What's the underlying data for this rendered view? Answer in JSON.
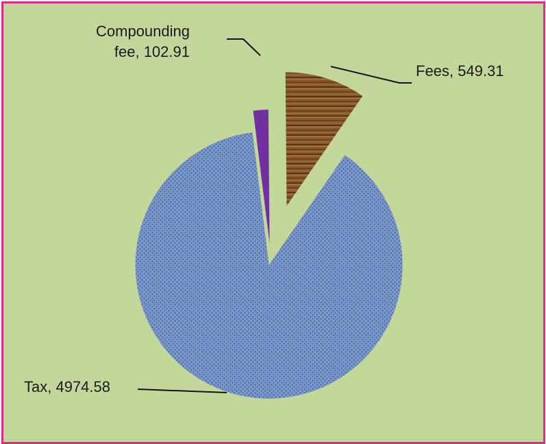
{
  "chart_data": {
    "type": "pie",
    "exploded": true,
    "slices": [
      {
        "category": "Compounding fee",
        "value": 102.91,
        "label_lines": [
          "Compounding",
          "fee, 102.91"
        ],
        "color": "#7030a0",
        "fill": "purple"
      },
      {
        "category": "Fees",
        "value": 549.31,
        "label_lines": [
          "Fees, 549.31"
        ],
        "color": "#8b5a2b",
        "fill": "wood-texture"
      },
      {
        "category": "Tax",
        "value": 4974.58,
        "label_lines": [
          "Tax, 4974.58"
        ],
        "color": "#5b7bb4",
        "fill": "blue-fabric-texture"
      }
    ],
    "legend": "none",
    "title": ""
  },
  "style": {
    "background": "#c4d79b",
    "border": "#e0288f"
  }
}
